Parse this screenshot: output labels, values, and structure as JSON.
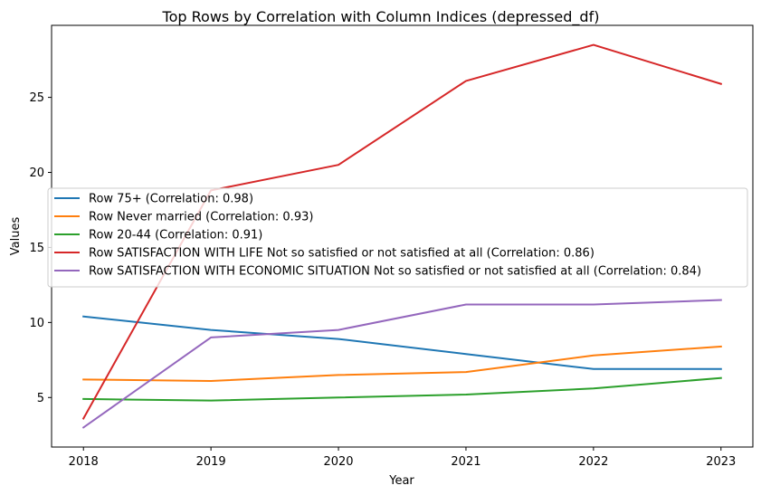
{
  "chart_data": {
    "type": "line",
    "title": "Top Rows by Correlation with Column Indices (depressed_df)",
    "xlabel": "Year",
    "ylabel": "Values",
    "x": [
      2018,
      2019,
      2020,
      2021,
      2022,
      2023
    ],
    "xticks": [
      "2018",
      "2019",
      "2020",
      "2021",
      "2022",
      "2023"
    ],
    "yticks": [
      5,
      10,
      15,
      20,
      25
    ],
    "xlim": [
      2017.75,
      2023.25
    ],
    "ylim": [
      1.7,
      29.8
    ],
    "grid": false,
    "legend_position": "center-left",
    "series": [
      {
        "name": "Row 75+ (Correlation: 0.98)",
        "color": "#1f77b4",
        "values": [
          10.4,
          9.5,
          8.9,
          7.9,
          6.9,
          6.9
        ]
      },
      {
        "name": "Row Never married (Correlation: 0.93)",
        "color": "#ff7f0e",
        "values": [
          6.2,
          6.1,
          6.5,
          6.7,
          7.8,
          8.4
        ]
      },
      {
        "name": "Row 20-44 (Correlation: 0.91)",
        "color": "#2ca02c",
        "values": [
          4.9,
          4.8,
          5.0,
          5.2,
          5.6,
          6.3
        ]
      },
      {
        "name": "Row SATISFACTION WITH LIFE Not so satisfied or not satisfied at all (Correlation: 0.86)",
        "color": "#d62728",
        "values": [
          3.6,
          18.8,
          20.5,
          26.1,
          28.5,
          25.9
        ]
      },
      {
        "name": "Row SATISFACTION WITH ECONOMIC SITUATION Not so satisfied or not satisfied at all (Correlation: 0.84)",
        "color": "#9467bd",
        "values": [
          3.0,
          9.0,
          9.5,
          11.2,
          11.2,
          11.5
        ]
      }
    ]
  }
}
